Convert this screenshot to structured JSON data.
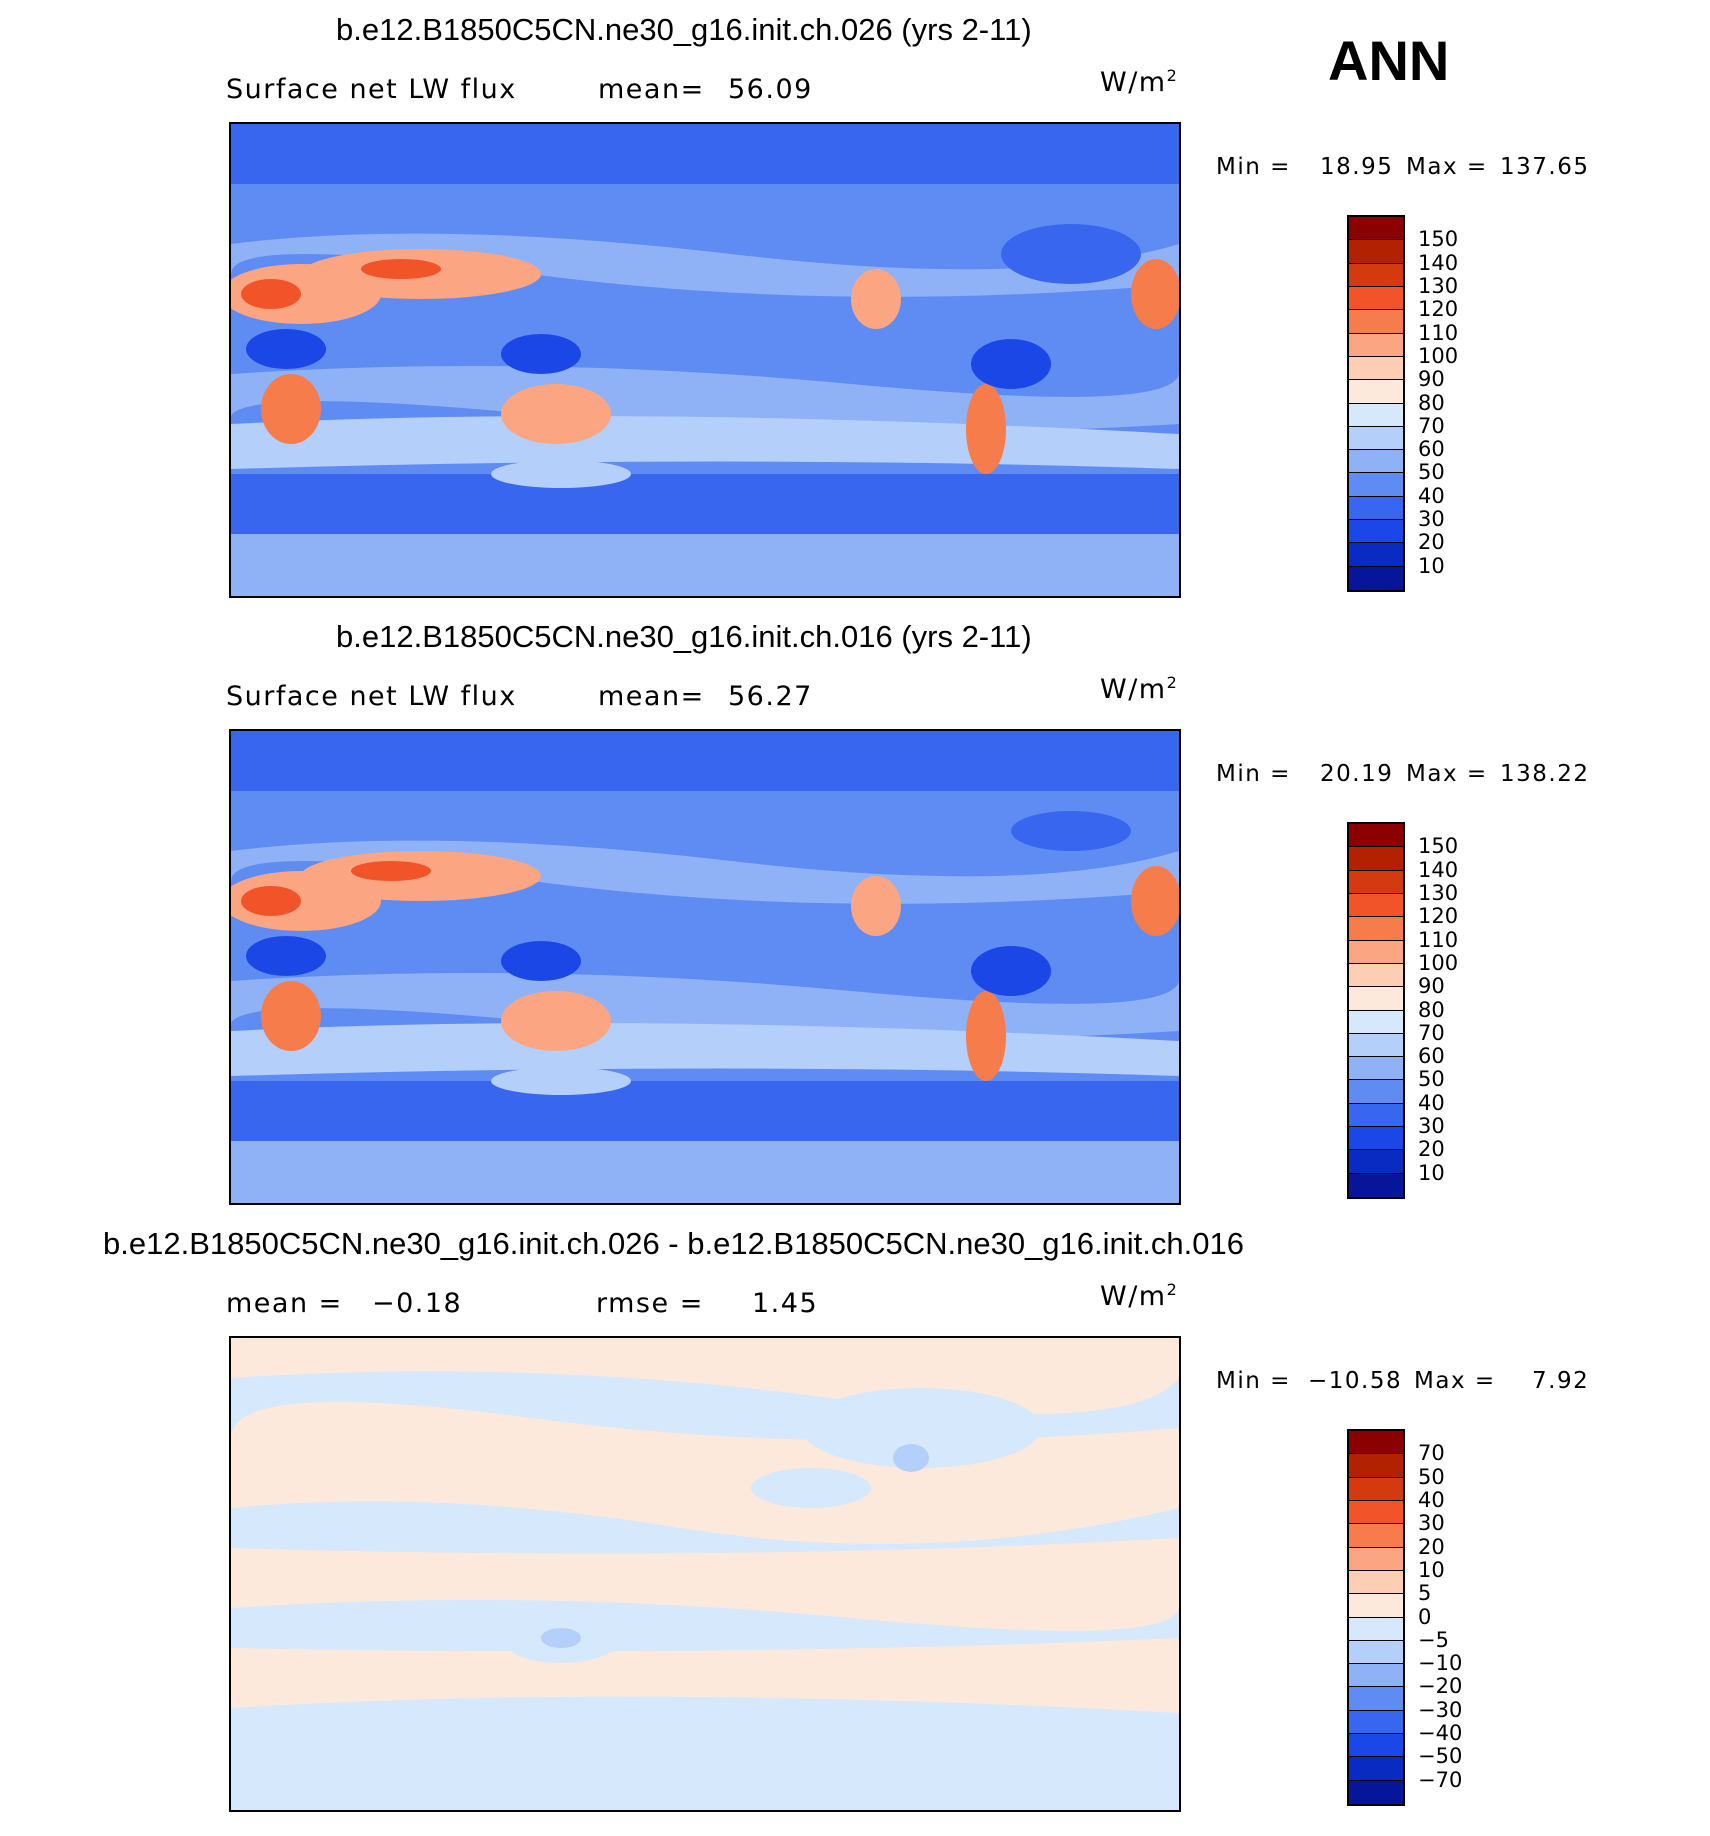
{
  "season": "ANN",
  "units_label": "W/m",
  "units_sup": "2",
  "panels": [
    {
      "title": "b.e12.B1850C5CN.ne30_g16.init.ch.026 (yrs 2-11)",
      "field_label": "Surface net LW flux",
      "stat_label": "mean=",
      "stat_value": "56.09",
      "minmax": {
        "min_label": "Min =",
        "min": "18.95",
        "max_label": "Max =",
        "max": "137.65"
      },
      "levels": [
        "150",
        "140",
        "130",
        "120",
        "110",
        "100",
        "90",
        "80",
        "70",
        "60",
        "50",
        "40",
        "30",
        "20",
        "10"
      ]
    },
    {
      "title": "b.e12.B1850C5CN.ne30_g16.init.ch.016 (yrs 2-11)",
      "field_label": "Surface net LW flux",
      "stat_label": "mean=",
      "stat_value": "56.27",
      "minmax": {
        "min_label": "Min =",
        "min": "20.19",
        "max_label": "Max =",
        "max": "138.22"
      },
      "levels": [
        "150",
        "140",
        "130",
        "120",
        "110",
        "100",
        "90",
        "80",
        "70",
        "60",
        "50",
        "40",
        "30",
        "20",
        "10"
      ]
    },
    {
      "title": "b.e12.B1850C5CN.ne30_g16.init.ch.026 - b.e12.B1850C5CN.ne30_g16.init.ch.016",
      "mean_label": "mean =",
      "mean_value": "−0.18",
      "rmse_label": "rmse =",
      "rmse_value": "1.45",
      "minmax": {
        "min_label": "Min =",
        "min": "−10.58",
        "max_label": "Max =",
        "max": "7.92"
      },
      "levels": [
        "70",
        "50",
        "40",
        "30",
        "20",
        "10",
        "5",
        "0",
        "−5",
        "−10",
        "−20",
        "−30",
        "−40",
        "−50",
        "−70"
      ]
    }
  ],
  "colorbar_colors": [
    "#8b0000",
    "#b22200",
    "#d43a10",
    "#f2542a",
    "#f77c4c",
    "#fba583",
    "#fdcdb4",
    "#fde9dc",
    "#d6e8fb",
    "#b4cffa",
    "#8fb2f7",
    "#5f8cf2",
    "#3866ef",
    "#1b47e6",
    "#0a2bc2",
    "#06159a"
  ]
}
